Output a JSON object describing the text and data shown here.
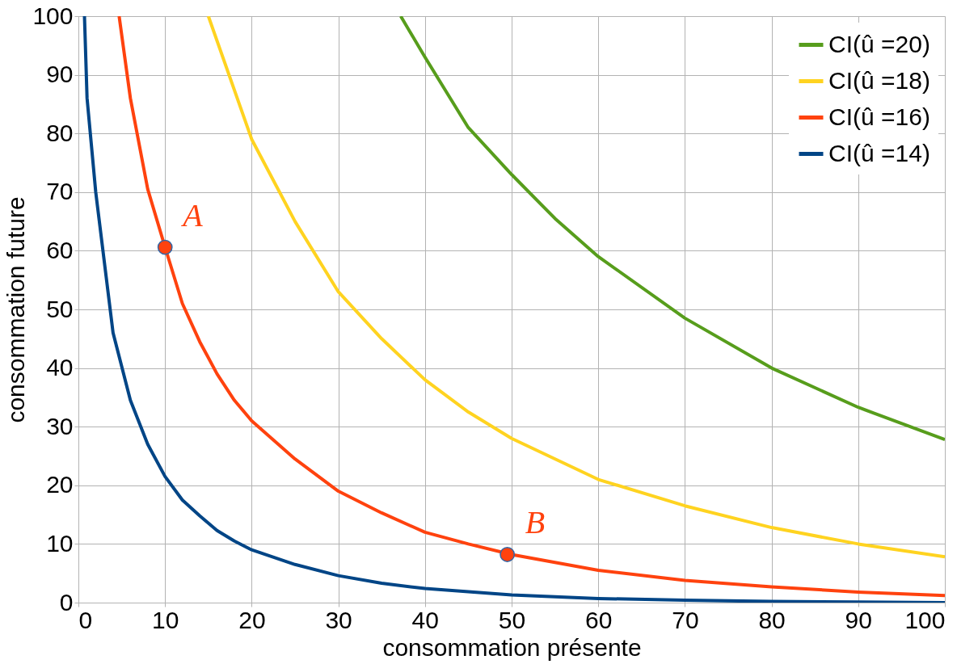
{
  "chart_data": {
    "type": "line",
    "xlabel": "consommation présente",
    "ylabel": "consommation future",
    "xlim": [
      0,
      100
    ],
    "ylim": [
      0,
      100
    ],
    "xticks": [
      0,
      10,
      20,
      30,
      40,
      50,
      60,
      70,
      80,
      90,
      100
    ],
    "yticks": [
      0,
      10,
      20,
      30,
      40,
      50,
      60,
      70,
      80,
      90,
      100
    ],
    "grid": true,
    "legend": "top right",
    "marker": "none",
    "line_style": "solid",
    "series": [
      {
        "name": "CI(û =20)",
        "color": "#579d1c",
        "x": [
          37.2,
          40,
          45,
          50,
          55,
          60,
          70,
          80,
          90,
          100
        ],
        "values": [
          100,
          93,
          81,
          73,
          65.5,
          59,
          48.5,
          40,
          33.3,
          27.8
        ]
      },
      {
        "name": "CI(û =18)",
        "color": "#ffd320",
        "x": [
          15,
          20,
          25,
          30,
          35,
          40,
          45,
          50,
          60,
          70,
          80,
          90,
          100
        ],
        "values": [
          100,
          79,
          65,
          53,
          45,
          38,
          32.5,
          28,
          21,
          16.5,
          12.8,
          10,
          7.8
        ]
      },
      {
        "name": "CI(û =16)",
        "color": "#ff420e",
        "x": [
          4.7,
          6,
          8,
          10,
          12,
          14,
          16,
          18,
          20,
          25,
          30,
          35,
          40,
          45,
          50,
          60,
          70,
          80,
          90,
          100
        ],
        "values": [
          100,
          86,
          70.5,
          60.6,
          51,
          44.5,
          39,
          34.5,
          31,
          24.5,
          19,
          15.3,
          12,
          10,
          8.2,
          5.5,
          3.8,
          2.7,
          1.8,
          1.2
        ]
      },
      {
        "name": "CI(û =14)",
        "color": "#004586",
        "x": [
          0.7,
          1,
          2,
          4,
          6,
          8,
          10,
          12,
          14,
          16,
          18,
          20,
          25,
          30,
          35,
          40,
          50,
          60,
          70,
          80,
          90,
          100
        ],
        "values": [
          100,
          86,
          70,
          46,
          34.5,
          27,
          21.5,
          17.5,
          14.8,
          12.3,
          10.5,
          9,
          6.5,
          4.6,
          3.3,
          2.4,
          1.3,
          0.7,
          0.4,
          0.2,
          0.1,
          0
        ]
      },
      {
        "type": "scatter",
        "color": "#ff420e",
        "marker": "circle",
        "x": [
          10,
          49.5
        ],
        "values": [
          60.6,
          8.2
        ]
      }
    ],
    "annotations": [
      {
        "text": "A",
        "x": 10,
        "y": 60.6
      },
      {
        "text": "B",
        "x": 49.5,
        "y": 8.2
      }
    ]
  }
}
